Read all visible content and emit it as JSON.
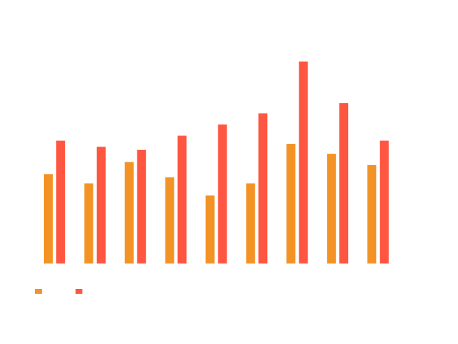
{
  "chart_data": {
    "type": "bar",
    "categories": [
      "",
      "",
      "",
      "",
      "",
      "",
      "",
      "",
      ""
    ],
    "series": [
      {
        "name": "",
        "color": "#F39325",
        "values": [
          44,
          39.5,
          50,
          42.5,
          33.5,
          39.5,
          59,
          54,
          48.5
        ]
      },
      {
        "name": "",
        "color": "#FF5641",
        "values": [
          60.5,
          57.5,
          56,
          63,
          68.5,
          74,
          99.5,
          79,
          60.5
        ]
      }
    ],
    "ylim": [
      0,
      100
    ],
    "grid": false,
    "legend_position": "bottom-left",
    "title": "",
    "xlabel": "",
    "ylabel": ""
  }
}
